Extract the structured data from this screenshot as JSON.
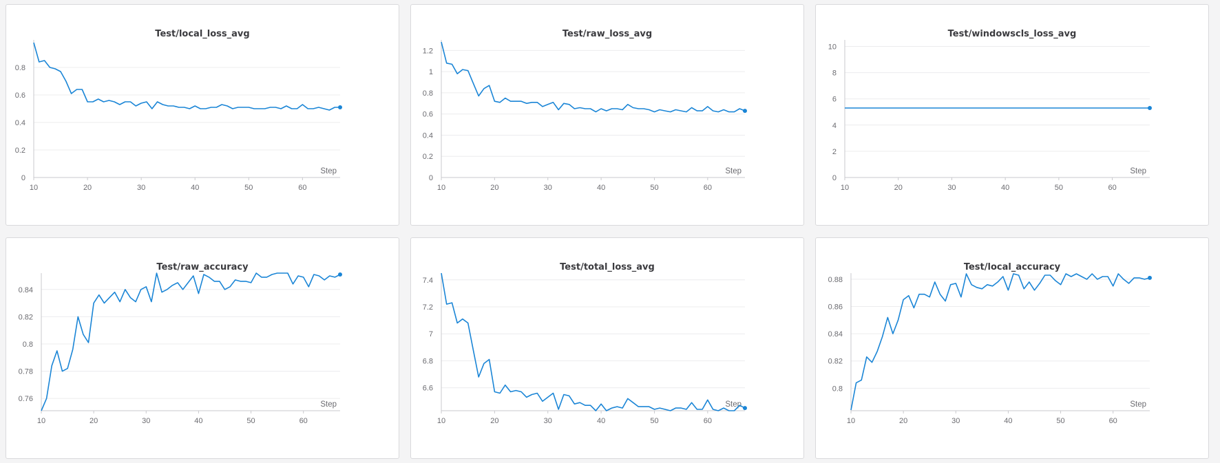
{
  "x_axis_label": "Step",
  "line_color": "#1a85d6",
  "panels": [
    {
      "title": "Test/local_loss_avg"
    },
    {
      "title": "Test/raw_loss_avg"
    },
    {
      "title": "Test/windowscls_loss_avg"
    },
    {
      "title": "Test/raw_accuracy"
    },
    {
      "title": "Test/total_loss_avg"
    },
    {
      "title": "Test/local_accuracy"
    }
  ],
  "chart_data": [
    {
      "type": "line",
      "title": "Test/local_loss_avg",
      "xlabel": "Step",
      "xlim": [
        10,
        67
      ],
      "ylim": [
        0,
        1.0
      ],
      "xticks": [
        10,
        20,
        30,
        40,
        50,
        60
      ],
      "yticks": [
        0,
        0.2,
        0.4,
        0.6,
        0.8
      ],
      "ytick_labels": [
        "0",
        "0.2",
        "0.4",
        "0.6",
        "0.8"
      ],
      "grid": true,
      "series": [
        {
          "x": [
            10,
            11,
            12,
            13,
            14,
            15,
            16,
            17,
            18,
            19,
            20,
            21,
            22,
            23,
            24,
            25,
            26,
            27,
            28,
            29,
            30,
            31,
            32,
            33,
            34,
            35,
            36,
            37,
            38,
            39,
            40,
            41,
            42,
            43,
            44,
            45,
            46,
            47,
            48,
            49,
            50,
            51,
            52,
            53,
            54,
            55,
            56,
            57,
            58,
            59,
            60,
            61,
            62,
            63,
            64,
            65,
            66,
            67
          ],
          "y": [
            0.98,
            0.84,
            0.85,
            0.8,
            0.79,
            0.77,
            0.7,
            0.61,
            0.64,
            0.64,
            0.55,
            0.55,
            0.57,
            0.55,
            0.56,
            0.55,
            0.53,
            0.55,
            0.55,
            0.52,
            0.54,
            0.55,
            0.5,
            0.55,
            0.53,
            0.52,
            0.52,
            0.51,
            0.51,
            0.5,
            0.52,
            0.5,
            0.5,
            0.51,
            0.51,
            0.53,
            0.52,
            0.5,
            0.51,
            0.51,
            0.51,
            0.5,
            0.5,
            0.5,
            0.51,
            0.51,
            0.5,
            0.52,
            0.5,
            0.5,
            0.53,
            0.5,
            0.5,
            0.51,
            0.5,
            0.49,
            0.51,
            0.51
          ]
        }
      ]
    },
    {
      "type": "line",
      "title": "Test/raw_loss_avg",
      "xlabel": "Step",
      "xlim": [
        10,
        67
      ],
      "ylim": [
        0,
        1.3
      ],
      "xticks": [
        10,
        20,
        30,
        40,
        50,
        60
      ],
      "yticks": [
        0,
        0.2,
        0.4,
        0.6,
        0.8,
        1.0,
        1.2
      ],
      "ytick_labels": [
        "0",
        "0.2",
        "0.4",
        "0.6",
        "0.8",
        "1",
        "1.2"
      ],
      "grid": true,
      "series": [
        {
          "x": [
            10,
            11,
            12,
            13,
            14,
            15,
            16,
            17,
            18,
            19,
            20,
            21,
            22,
            23,
            24,
            25,
            26,
            27,
            28,
            29,
            30,
            31,
            32,
            33,
            34,
            35,
            36,
            37,
            38,
            39,
            40,
            41,
            42,
            43,
            44,
            45,
            46,
            47,
            48,
            49,
            50,
            51,
            52,
            53,
            54,
            55,
            56,
            57,
            58,
            59,
            60,
            61,
            62,
            63,
            64,
            65,
            66,
            67
          ],
          "y": [
            1.28,
            1.08,
            1.07,
            0.98,
            1.02,
            1.01,
            0.89,
            0.77,
            0.84,
            0.87,
            0.72,
            0.71,
            0.75,
            0.72,
            0.72,
            0.72,
            0.7,
            0.71,
            0.71,
            0.67,
            0.69,
            0.71,
            0.64,
            0.7,
            0.69,
            0.65,
            0.66,
            0.65,
            0.65,
            0.62,
            0.65,
            0.63,
            0.65,
            0.65,
            0.64,
            0.69,
            0.66,
            0.65,
            0.65,
            0.64,
            0.62,
            0.64,
            0.63,
            0.62,
            0.64,
            0.63,
            0.62,
            0.66,
            0.63,
            0.63,
            0.67,
            0.63,
            0.62,
            0.64,
            0.62,
            0.62,
            0.65,
            0.63
          ]
        }
      ]
    },
    {
      "type": "line",
      "title": "Test/windowscls_loss_avg",
      "xlabel": "Step",
      "xlim": [
        10,
        67
      ],
      "ylim": [
        0,
        10.5
      ],
      "xticks": [
        10,
        20,
        30,
        40,
        50,
        60
      ],
      "yticks": [
        0,
        2,
        4,
        6,
        8,
        10
      ],
      "ytick_labels": [
        "0",
        "2",
        "4",
        "6",
        "8",
        "10"
      ],
      "grid": true,
      "series": [
        {
          "x": [
            10,
            67
          ],
          "y": [
            5.3,
            5.3
          ]
        }
      ]
    },
    {
      "type": "line",
      "title": "Test/raw_accuracy",
      "xlabel": "Step",
      "xlim": [
        10,
        67
      ],
      "ylim": [
        0.751,
        0.852
      ],
      "xticks": [
        10,
        20,
        30,
        40,
        50,
        60
      ],
      "yticks": [
        0.76,
        0.78,
        0.8,
        0.82,
        0.84
      ],
      "ytick_labels": [
        "0.76",
        "0.78",
        "0.8",
        "0.82",
        "0.84"
      ],
      "grid": true,
      "series": [
        {
          "x": [
            10,
            11,
            12,
            13,
            14,
            15,
            16,
            17,
            18,
            19,
            20,
            21,
            22,
            23,
            24,
            25,
            26,
            27,
            28,
            29,
            30,
            31,
            32,
            33,
            34,
            35,
            36,
            37,
            38,
            39,
            40,
            41,
            42,
            43,
            44,
            45,
            46,
            47,
            48,
            49,
            50,
            51,
            52,
            53,
            54,
            55,
            56,
            57,
            58,
            59,
            60,
            61,
            62,
            63,
            64,
            65,
            66,
            67
          ],
          "y": [
            0.751,
            0.76,
            0.784,
            0.795,
            0.78,
            0.782,
            0.796,
            0.82,
            0.807,
            0.801,
            0.83,
            0.836,
            0.83,
            0.834,
            0.838,
            0.831,
            0.84,
            0.834,
            0.831,
            0.84,
            0.842,
            0.831,
            0.852,
            0.838,
            0.84,
            0.843,
            0.845,
            0.84,
            0.845,
            0.85,
            0.837,
            0.851,
            0.849,
            0.846,
            0.846,
            0.84,
            0.842,
            0.847,
            0.846,
            0.846,
            0.845,
            0.852,
            0.849,
            0.849,
            0.851,
            0.852,
            0.852,
            0.852,
            0.844,
            0.85,
            0.849,
            0.842,
            0.851,
            0.85,
            0.847,
            0.85,
            0.849,
            0.851
          ]
        }
      ]
    },
    {
      "type": "line",
      "title": "Test/total_loss_avg",
      "xlabel": "Step",
      "xlim": [
        10,
        67
      ],
      "ylim": [
        6.43,
        7.45
      ],
      "xticks": [
        10,
        20,
        30,
        40,
        50,
        60
      ],
      "yticks": [
        6.6,
        6.8,
        7.0,
        7.2,
        7.4
      ],
      "ytick_labels": [
        "6.6",
        "6.8",
        "7",
        "7.2",
        "7.4"
      ],
      "grid": true,
      "series": [
        {
          "x": [
            10,
            11,
            12,
            13,
            14,
            15,
            16,
            17,
            18,
            19,
            20,
            21,
            22,
            23,
            24,
            25,
            26,
            27,
            28,
            29,
            30,
            31,
            32,
            33,
            34,
            35,
            36,
            37,
            38,
            39,
            40,
            41,
            42,
            43,
            44,
            45,
            46,
            47,
            48,
            49,
            50,
            51,
            52,
            53,
            54,
            55,
            56,
            57,
            58,
            59,
            60,
            61,
            62,
            63,
            64,
            65,
            66,
            67
          ],
          "y": [
            7.45,
            7.22,
            7.23,
            7.08,
            7.11,
            7.08,
            6.88,
            6.68,
            6.78,
            6.81,
            6.57,
            6.56,
            6.62,
            6.57,
            6.58,
            6.57,
            6.53,
            6.55,
            6.56,
            6.5,
            6.53,
            6.56,
            6.44,
            6.55,
            6.54,
            6.48,
            6.49,
            6.47,
            6.47,
            6.43,
            6.48,
            6.43,
            6.45,
            6.46,
            6.45,
            6.52,
            6.49,
            6.46,
            6.46,
            6.46,
            6.44,
            6.45,
            6.44,
            6.43,
            6.45,
            6.45,
            6.44,
            6.49,
            6.44,
            6.44,
            6.51,
            6.44,
            6.43,
            6.45,
            6.43,
            6.43,
            6.47,
            6.45
          ]
        }
      ]
    },
    {
      "type": "line",
      "title": "Test/local_accuracy",
      "xlabel": "Step",
      "xlim": [
        10,
        67
      ],
      "ylim": [
        0.7835,
        0.8845
      ],
      "xticks": [
        10,
        20,
        30,
        40,
        50,
        60
      ],
      "yticks": [
        0.8,
        0.82,
        0.84,
        0.86,
        0.88
      ],
      "ytick_labels": [
        "0.8",
        "0.82",
        "0.84",
        "0.86",
        "0.88"
      ],
      "grid": true,
      "series": [
        {
          "x": [
            10,
            11,
            12,
            13,
            14,
            15,
            16,
            17,
            18,
            19,
            20,
            21,
            22,
            23,
            24,
            25,
            26,
            27,
            28,
            29,
            30,
            31,
            32,
            33,
            34,
            35,
            36,
            37,
            38,
            39,
            40,
            41,
            42,
            43,
            44,
            45,
            46,
            47,
            48,
            49,
            50,
            51,
            52,
            53,
            54,
            55,
            56,
            57,
            58,
            59,
            60,
            61,
            62,
            63,
            64,
            65,
            66,
            67
          ],
          "y": [
            0.784,
            0.804,
            0.806,
            0.823,
            0.819,
            0.827,
            0.838,
            0.852,
            0.84,
            0.85,
            0.865,
            0.868,
            0.859,
            0.869,
            0.869,
            0.867,
            0.878,
            0.869,
            0.864,
            0.876,
            0.877,
            0.867,
            0.884,
            0.876,
            0.874,
            0.873,
            0.876,
            0.875,
            0.878,
            0.882,
            0.872,
            0.884,
            0.883,
            0.873,
            0.878,
            0.872,
            0.877,
            0.883,
            0.883,
            0.879,
            0.876,
            0.884,
            0.882,
            0.884,
            0.882,
            0.88,
            0.884,
            0.88,
            0.882,
            0.882,
            0.875,
            0.884,
            0.88,
            0.877,
            0.881,
            0.881,
            0.88,
            0.881
          ]
        }
      ]
    }
  ]
}
